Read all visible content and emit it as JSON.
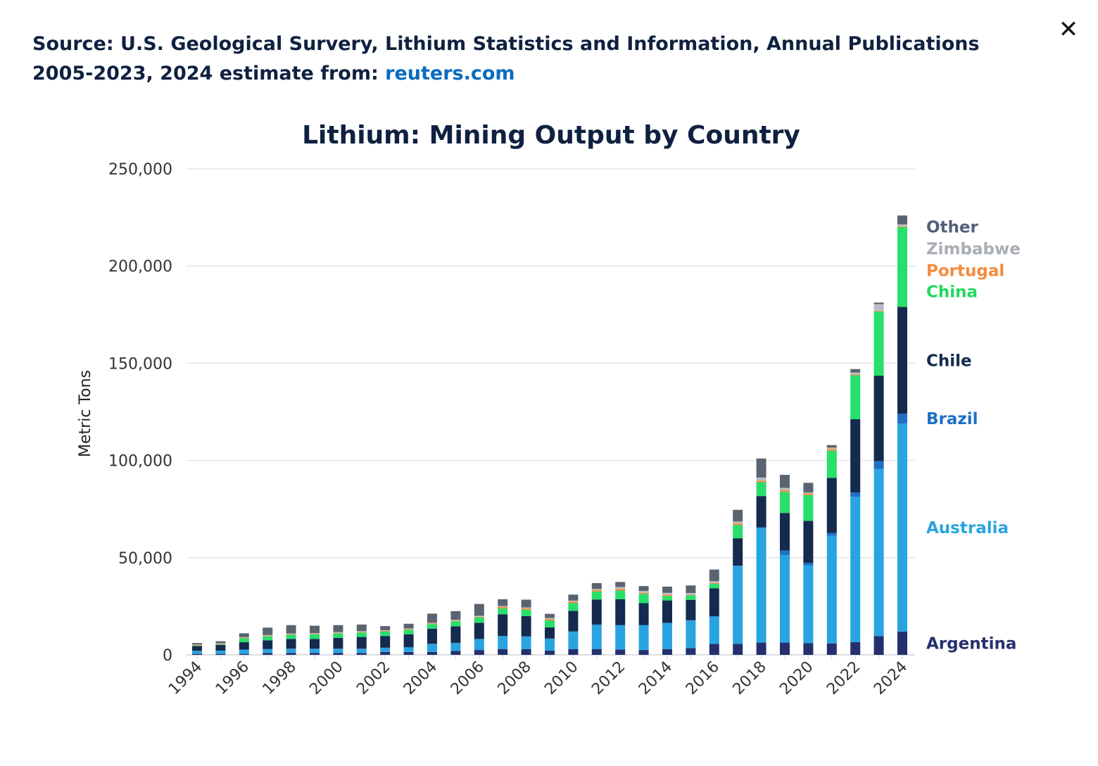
{
  "header": {
    "source_text": "Source: U.S. Geological Survery, Lithium Statistics and Information, Annual Publications 2005-2023, 2024 estimate from: ",
    "source_link": "reuters.com",
    "close_icon": "close-icon",
    "close_glyph": "✕"
  },
  "chart_data": {
    "type": "bar",
    "stacked": true,
    "title": "Lithium: Mining Output by Country",
    "ylabel": "Metric Tons",
    "xlabel": "",
    "ylim": [
      0,
      250000
    ],
    "yticks": [
      0,
      50000,
      100000,
      150000,
      200000,
      250000
    ],
    "ytick_labels": [
      "0",
      "50,000",
      "100,000",
      "150,000",
      "200,000",
      "250,000"
    ],
    "xtick_labels": [
      "1994",
      "1996",
      "1998",
      "2000",
      "2002",
      "2004",
      "2006",
      "2008",
      "2010",
      "2012",
      "2014",
      "2016",
      "2018",
      "2020",
      "2022",
      "2024"
    ],
    "grid": true,
    "legend_placement": "right (labels beside the 2024 bar)",
    "categories": [
      "1994",
      "1995",
      "1996",
      "1997",
      "1998",
      "1999",
      "2000",
      "2001",
      "2002",
      "2003",
      "2004",
      "2005",
      "2006",
      "2007",
      "2008",
      "2009",
      "2010",
      "2011",
      "2012",
      "2013",
      "2014",
      "2015",
      "2016",
      "2017",
      "2018",
      "2019",
      "2020",
      "2021",
      "2022",
      "2023",
      "2024"
    ],
    "series": [
      {
        "name": "Argentina",
        "color": "#24306e",
        "values": [
          500,
          500,
          500,
          1000,
          1000,
          1000,
          1000,
          1000,
          1500,
          1500,
          1500,
          2000,
          2500,
          3000,
          3000,
          2200,
          2900,
          3000,
          2700,
          2500,
          3000,
          3500,
          5700,
          5700,
          6300,
          6300,
          6000,
          5900,
          6600,
          9600,
          12000
        ]
      },
      {
        "name": "Australia",
        "color": "#29a4e0",
        "values": [
          1600,
          1700,
          2200,
          2000,
          2000,
          2000,
          2000,
          2000,
          2000,
          2300,
          4000,
          4000,
          5500,
          6500,
          6300,
          6000,
          9000,
          12400,
          12500,
          12700,
          13300,
          14100,
          14000,
          40000,
          58800,
          45000,
          40000,
          55300,
          74700,
          86000,
          107000
        ]
      },
      {
        "name": "Brazil",
        "color": "#1f6fc4",
        "values": [
          0,
          0,
          0,
          0,
          200,
          200,
          200,
          200,
          200,
          200,
          200,
          200,
          200,
          200,
          200,
          200,
          200,
          200,
          200,
          200,
          200,
          200,
          200,
          200,
          600,
          2400,
          1400,
          1500,
          2200,
          4000,
          5000
        ]
      },
      {
        "name": "Chile",
        "color": "#142a4e",
        "values": [
          2400,
          2900,
          3800,
          4500,
          5000,
          5000,
          5500,
          6000,
          6000,
          6600,
          7800,
          8500,
          8300,
          11200,
          10400,
          5700,
          10500,
          12900,
          13200,
          11200,
          11500,
          10500,
          14300,
          14100,
          16000,
          19300,
          21500,
          28300,
          37700,
          44000,
          55000
        ]
      },
      {
        "name": "China",
        "color": "#26e06b",
        "values": [
          200,
          300,
          2000,
          2000,
          2100,
          2300,
          2300,
          2300,
          2300,
          2300,
          2300,
          2600,
          2800,
          3000,
          3300,
          3700,
          4000,
          4100,
          4500,
          4700,
          2300,
          2300,
          2300,
          6800,
          7100,
          10800,
          13300,
          14000,
          22600,
          33000,
          41000
        ]
      },
      {
        "name": "Portugal",
        "color": "#f58a3c",
        "values": [
          300,
          300,
          300,
          300,
          300,
          300,
          300,
          300,
          300,
          300,
          300,
          300,
          300,
          700,
          700,
          700,
          800,
          800,
          800,
          600,
          600,
          300,
          400,
          800,
          800,
          900,
          900,
          900,
          400,
          400,
          400
        ]
      },
      {
        "name": "Zimbabwe",
        "color": "#b8bdc4",
        "values": [
          300,
          300,
          300,
          400,
          400,
          400,
          400,
          400,
          400,
          400,
          400,
          500,
          500,
          500,
          500,
          500,
          500,
          500,
          1000,
          1000,
          1000,
          900,
          1000,
          1000,
          1600,
          1200,
          400,
          700,
          1000,
          3400,
          1000
        ]
      },
      {
        "name": "Other",
        "color": "#5a6470",
        "values": [
          800,
          1000,
          2000,
          3800,
          4300,
          3800,
          3600,
          3400,
          2100,
          2400,
          4700,
          4400,
          6100,
          3500,
          4000,
          2100,
          3100,
          3000,
          2600,
          2500,
          3200,
          3900,
          6000,
          6000,
          9800,
          6700,
          5000,
          1300,
          1800,
          800,
          4600
        ]
      }
    ],
    "legend_labels": [
      {
        "name": "Other",
        "color": "#53607a"
      },
      {
        "name": "Zimbabwe",
        "color": "#a9adb4"
      },
      {
        "name": "Portugal",
        "color": "#f58a3c"
      },
      {
        "name": "China",
        "color": "#1fd95f"
      },
      {
        "name": "Chile",
        "color": "#142a4e"
      },
      {
        "name": "Brazil",
        "color": "#1f6fc4"
      },
      {
        "name": "Australia",
        "color": "#29a4e0"
      },
      {
        "name": "Argentina",
        "color": "#24306e"
      }
    ]
  }
}
